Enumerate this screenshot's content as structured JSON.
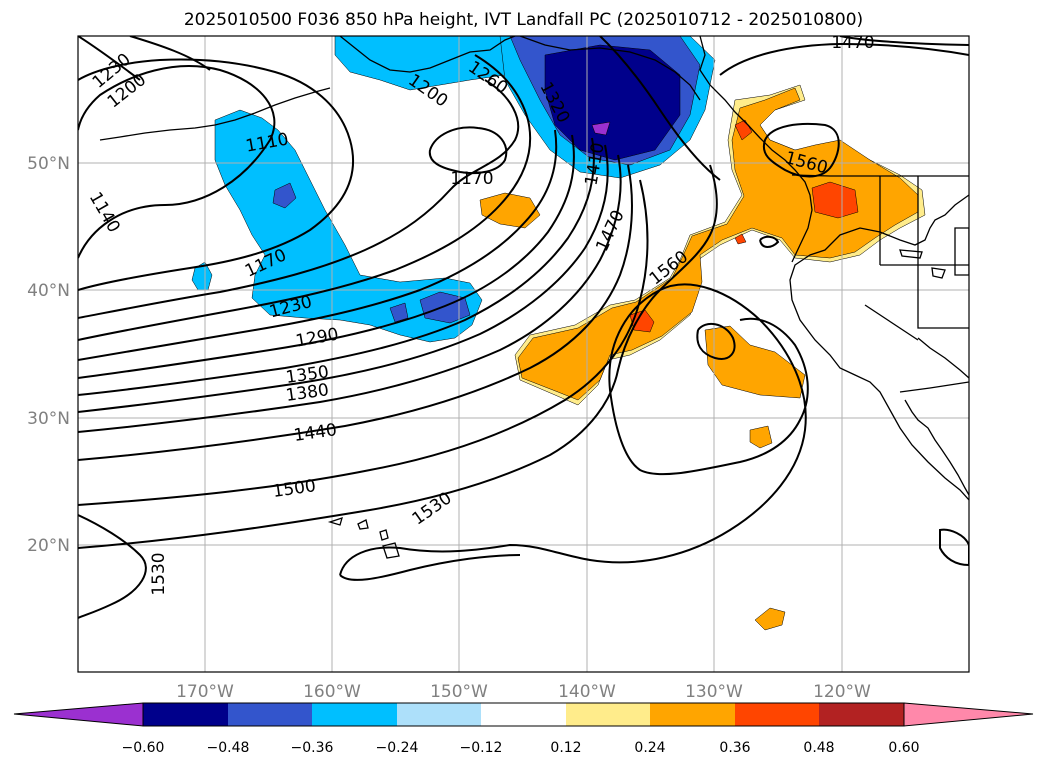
{
  "title": "2025010500 F036 850 hPa height, IVT Landfall PC (2025010712 - 2025010800)",
  "lon_ticks": [
    "170°W",
    "160°W",
    "150°W",
    "140°W",
    "130°W",
    "120°W"
  ],
  "lat_ticks": [
    "50°N",
    "40°N",
    "30°N",
    "20°N"
  ],
  "colorbar": {
    "ticks": [
      "−0.60",
      "−0.48",
      "−0.36",
      "−0.24",
      "−0.12",
      "0.12",
      "0.24",
      "0.36",
      "0.48",
      "0.60"
    ],
    "colors": [
      "#9b30d0",
      "#00008b",
      "#3355cc",
      "#00bfff",
      "#ade0fa",
      "#ffffff",
      "#ffec8b",
      "#ffa500",
      "#ff4500",
      "#b22222",
      "#ff88aa"
    ]
  },
  "contour_labels": [
    "1230",
    "1200",
    "1200",
    "1260",
    "1320",
    "1470",
    "1110",
    "1140",
    "1170",
    "1170",
    "1410",
    "1470",
    "1560",
    "1560",
    "1230",
    "1290",
    "1350",
    "1380",
    "1440",
    "1500",
    "1530",
    "1530"
  ]
}
